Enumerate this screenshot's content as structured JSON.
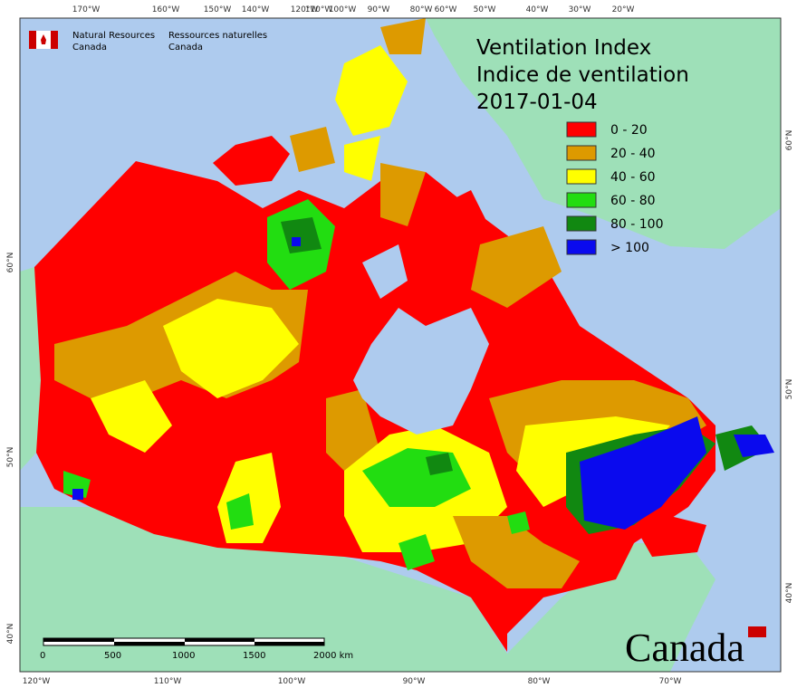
{
  "header": {
    "agency_en": [
      "Natural Resources",
      "Canada"
    ],
    "agency_fr": [
      "Ressources naturelles",
      "Canada"
    ],
    "wordmark": "Canada"
  },
  "title": {
    "lines": [
      "Ventilation Index",
      "Indice de ventilation",
      "2017-01-04"
    ]
  },
  "legend": [
    {
      "label": "0 - 20",
      "color": "#ff0000"
    },
    {
      "label": "20 - 40",
      "color": "#dd9a00"
    },
    {
      "label": "40 - 60",
      "color": "#ffff00"
    },
    {
      "label": "60 - 80",
      "color": "#22dd11"
    },
    {
      "label": "80 - 100",
      "color": "#118811"
    },
    {
      "label": "> 100",
      "color": "#0a0aee"
    }
  ],
  "graticule": {
    "top": [
      "170°W",
      "160°W",
      "150°W",
      "140°W",
      "120°W",
      "110°W",
      "100°W",
      "90°W",
      "80°W",
      "60°W",
      "50°W",
      "40°W",
      "30°W",
      "20°W"
    ],
    "bottom": [
      "120°W",
      "110°W",
      "100°W",
      "90°W",
      "80°W",
      "70°W"
    ],
    "left": [
      "60°N",
      "50°N",
      "40°N"
    ],
    "right": [
      "60°N",
      "50°N",
      "40°N"
    ]
  },
  "scale_bar": [
    "0",
    "500",
    "1000",
    "1500",
    "2000 km"
  ]
}
